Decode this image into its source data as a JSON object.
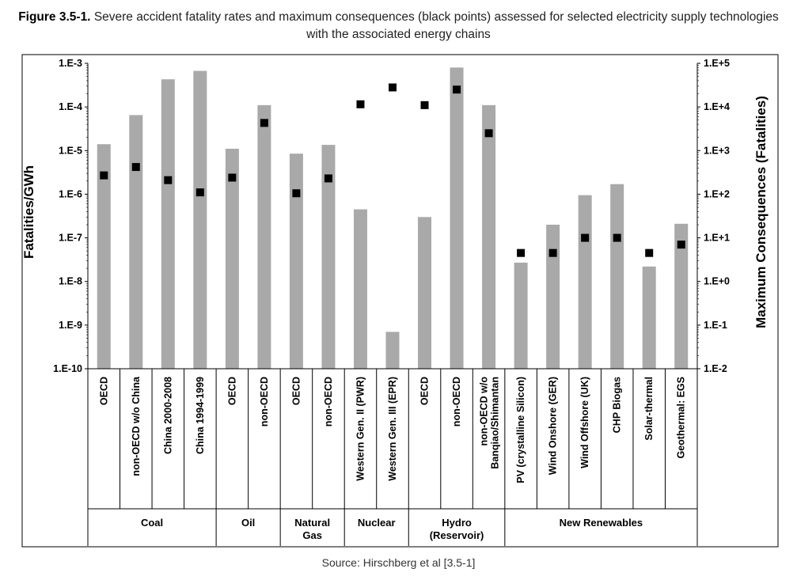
{
  "caption": {
    "label": "Figure 3.5-1.",
    "text": "Severe accident fatality rates and maximum consequences (black points) assessed for selected electricity supply technologies with the associated energy chains"
  },
  "source": "Source: Hirschberg et al [3.5-1]",
  "colors": {
    "bar": "#a9a9a9",
    "point": "#000000",
    "frame": "#000000"
  },
  "chart_data": {
    "type": "bar",
    "yscale": "log",
    "ylabel": "Fatalities/GWh",
    "y2label": "Maximum Consequences (Fatalities)",
    "ylim": [
      1e-10,
      0.001
    ],
    "y2lim": [
      0.01,
      100000
    ],
    "yticks": [
      "1.E-10",
      "1.E-9",
      "1.E-8",
      "1.E-7",
      "1.E-6",
      "1.E-5",
      "1.E-4",
      "1.E-3"
    ],
    "y2ticks": [
      "1.E-2",
      "1.E-1",
      "1.E+0",
      "1.E+1",
      "1.E+2",
      "1.E+3",
      "1.E+4",
      "1.E+5"
    ],
    "categories": [
      "OECD",
      "non-OECD w/o China",
      "China 2000-2008",
      "China 1994-1999",
      "OECD",
      "non-OECD",
      "OECD",
      "non-OECD",
      "Western Gen. II (PWR)",
      "Western Gen. III (EPR)",
      "OECD",
      "non-OECD",
      "non-OECD w/o Banqiao/Shimantan",
      "PV (crystalline Silicon)",
      "Wind Onshore (GER)",
      "Wind Offshore (UK)",
      "CHP Biogas",
      "Solar-thermal",
      "Geothermal: EGS"
    ],
    "groups": [
      {
        "name": "Coal",
        "count": 4
      },
      {
        "name": "Oil",
        "count": 2
      },
      {
        "name": "Natural\nGas",
        "count": 2
      },
      {
        "name": "Nuclear",
        "count": 2
      },
      {
        "name": "Hydro\n(Reservoir)",
        "count": 3
      },
      {
        "name": "New Renewables",
        "count": 6
      }
    ],
    "series": [
      {
        "name": "Fatality rate (Fatalities/GWh)",
        "axis": "left",
        "type": "bar",
        "values": [
          1.4e-05,
          6.5e-05,
          0.00043,
          0.00067,
          1.1e-05,
          0.00011,
          8.5e-06,
          1.35e-05,
          4.5e-07,
          7e-10,
          3e-07,
          0.0008,
          0.00011,
          2.7e-08,
          2e-07,
          9.5e-07,
          1.7e-06,
          2.2e-08,
          2.1e-07
        ]
      },
      {
        "name": "Maximum consequences (Fatalities)",
        "axis": "right",
        "type": "scatter",
        "values": [
          270,
          420,
          210,
          110,
          240,
          4300,
          105,
          230,
          11500,
          28000,
          11000,
          25000,
          2500,
          4.5,
          4.5,
          10,
          10,
          4.5,
          7
        ]
      }
    ]
  }
}
